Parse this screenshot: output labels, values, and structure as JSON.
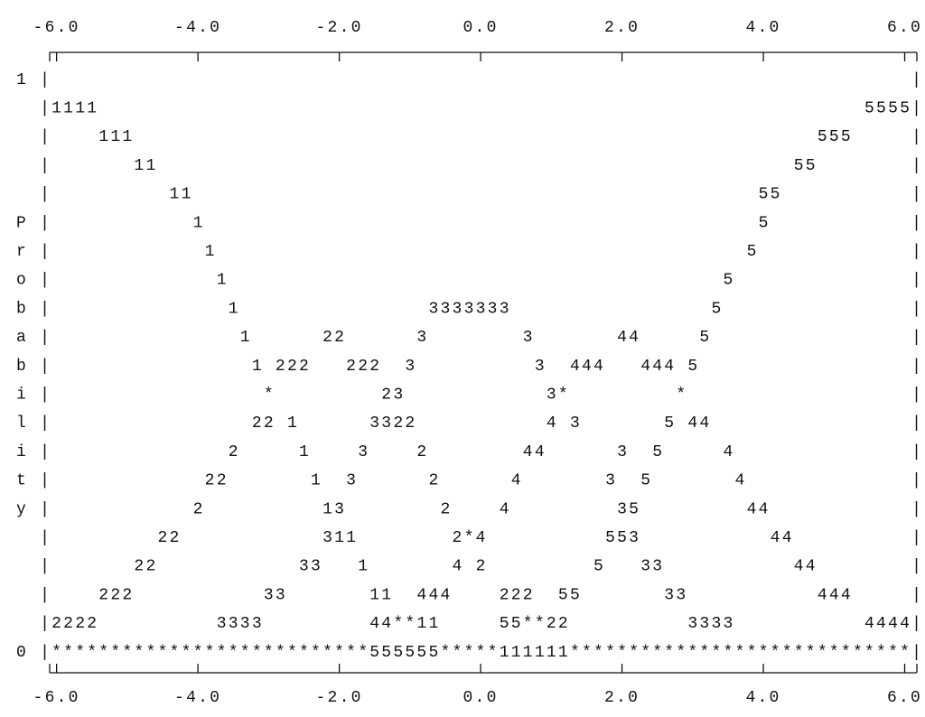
{
  "axis_labels": [
    "-6.0",
    "-4.0",
    "-2.0",
    "0.0",
    "2.0",
    "4.0",
    "6.0"
  ],
  "plot": {
    "rows": [
      "1 |                                                                         |",
      "  |1111                                                                 5555|",
      "  |    111                                                          555     |",
      "  |       11                                                      55        |",
      "  |          11                                                55           |",
      "P |            1                                               5            |",
      "r |             1                                             5             |",
      "o |              1                                          5               |",
      "b |               1                3333333                 5                |",
      "a |                1      22      3        3       44     5                 |",
      "b |                 1 222   222  3          3  444   444 5                  |",
      "i |                  *         23            3*         *                   |",
      "l |                 22 1      3322           4 3       5 44                 |",
      "i |               2     1    3    2        44      3  5     4               |",
      "t |             22       1  3      2      4       3  5       4              |",
      "y |            2          13        2    4         35         44            |",
      "  |         22            311        2*4          553           44          |",
      "  |       22            33   1       4 2         5   33           44        |",
      "  |    222           33       11  444    222  55       33           444     |",
      "  |2222          3333         44**11     55**22          3333           4444|",
      "0 |***************************555555*****111111*****************************|"
    ]
  }
}
